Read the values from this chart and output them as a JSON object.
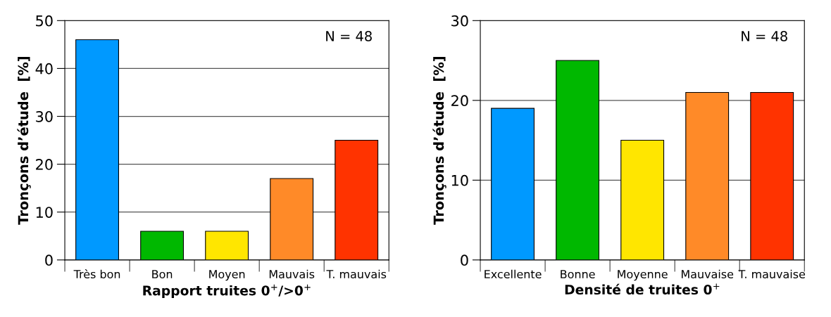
{
  "chart_data": [
    {
      "type": "bar",
      "xlabel": "Rapport truites 0$^{+}$/>0$^{+}$",
      "ylabel": "Tronçons d’étude  [%]",
      "annotations": [
        "N = 48"
      ],
      "categories": [
        "Très bon",
        "Bon",
        "Moyen",
        "Mauvais",
        "T. mauvais"
      ],
      "values": [
        46,
        6,
        6,
        17,
        25
      ],
      "colors": [
        "#0099ff",
        "#00b800",
        "#ffe600",
        "#ff8a28",
        "#ff3300"
      ],
      "ylim": [
        0,
        50
      ],
      "yticks": [
        0,
        10,
        20,
        30,
        40,
        50
      ],
      "grid": "y"
    },
    {
      "type": "bar",
      "xlabel": "Densité de truites 0$^{+}$",
      "ylabel": "Tronçons d’étude  [%]",
      "annotations": [
        "N = 48"
      ],
      "categories": [
        "Excellente",
        "Bonne",
        "Moyenne",
        "Mauvaise",
        "T. mauvaise"
      ],
      "values": [
        19,
        25,
        15,
        21,
        21
      ],
      "colors": [
        "#0099ff",
        "#00b800",
        "#ffe600",
        "#ff8a28",
        "#ff3300"
      ],
      "ylim": [
        0,
        30
      ],
      "yticks": [
        0,
        10,
        20,
        30
      ],
      "grid": "y"
    }
  ]
}
